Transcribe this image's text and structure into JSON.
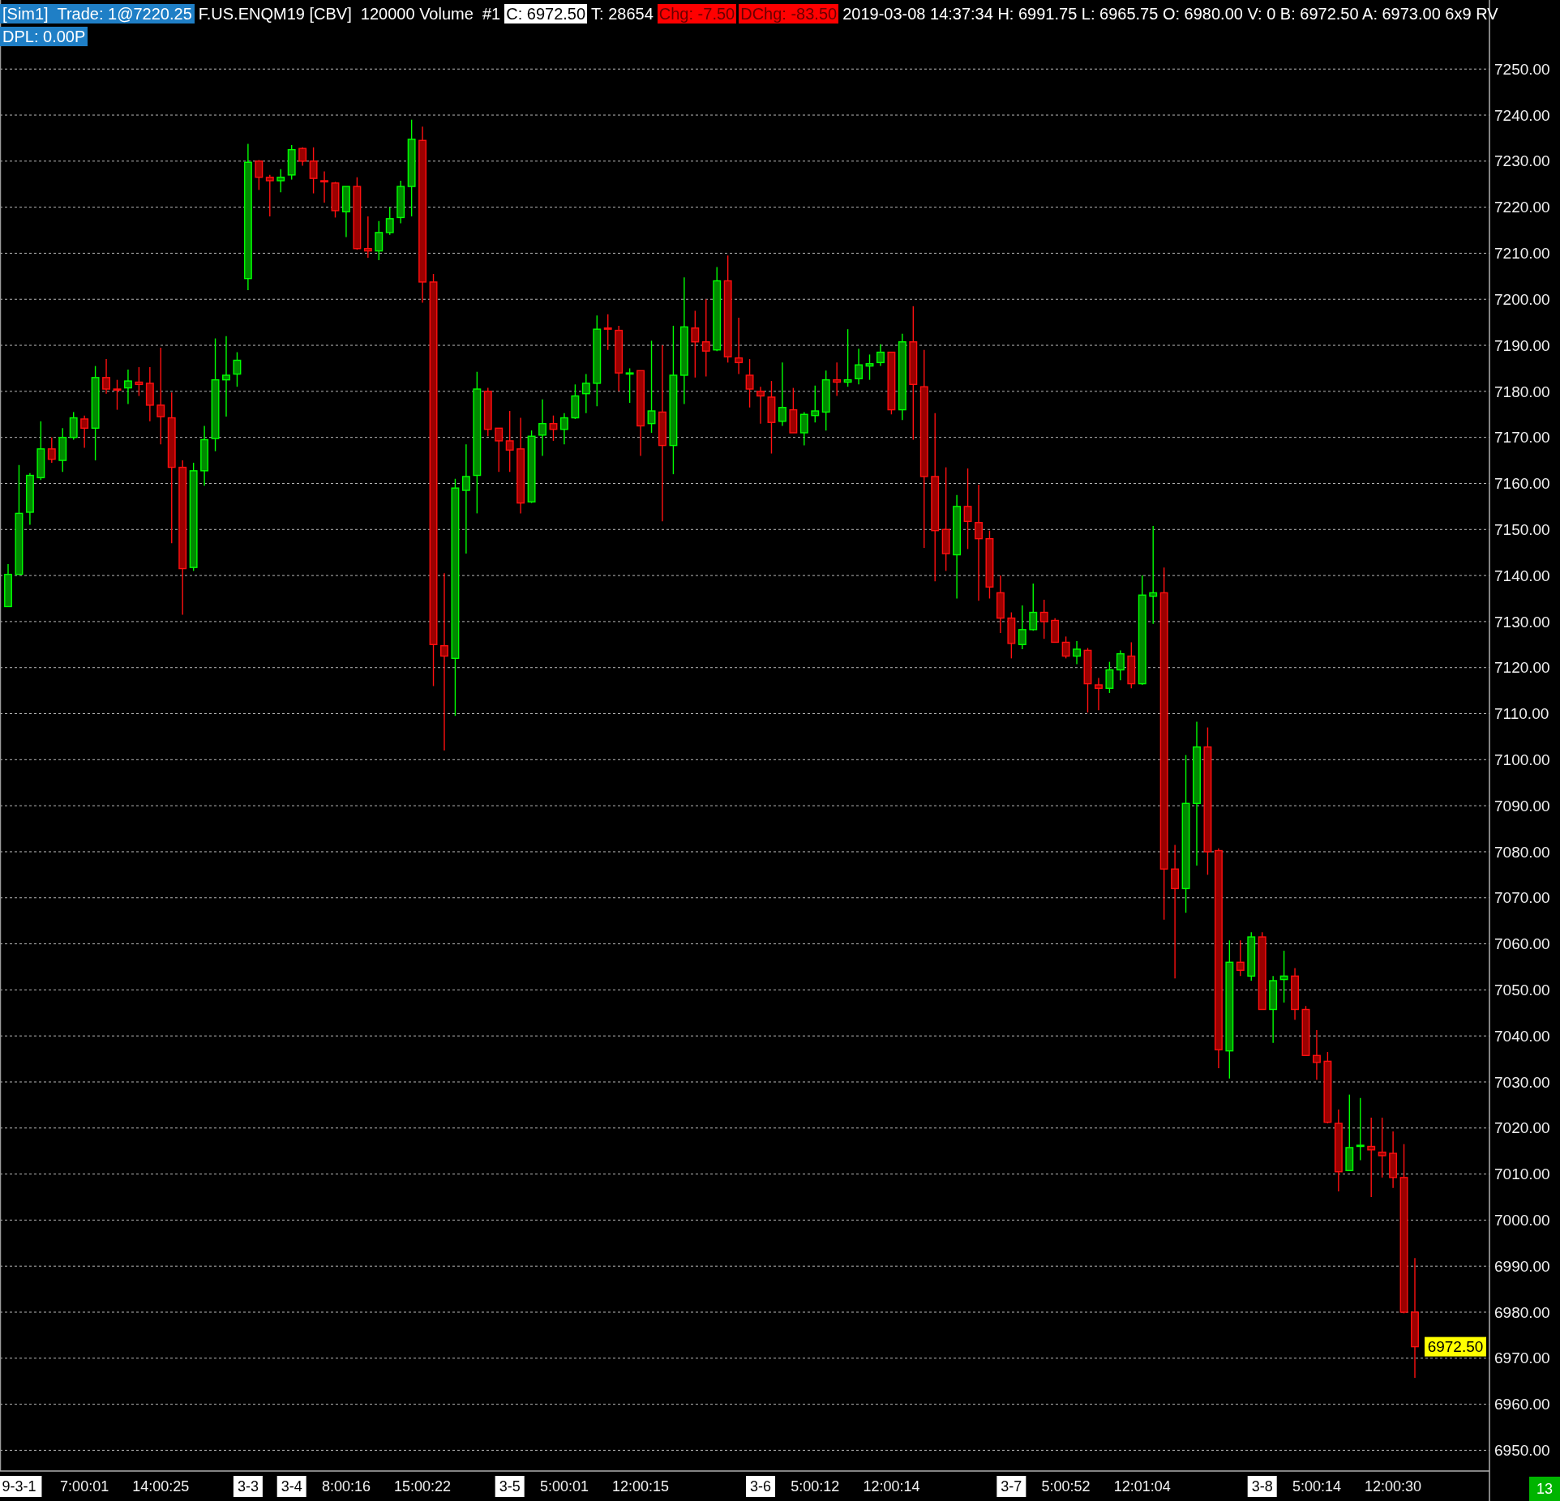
{
  "chart_data": {
    "type": "candlestick",
    "title": "[Sim1]  Trade: 1@7220.25",
    "subtitle": "DPL: 0.00P",
    "annotations": [
      "F.US.ENQM19 [CBV]  120000 Volume  #1",
      "C: 6972.50",
      "T: 28654",
      "Chg: -7.50",
      "DChg: -83.50",
      "2019-03-08 14:37:34 H: 6991.75 L: 6965.75 O: 6980.00 V: 0 B: 6972.50 A: 6973.00 6x9 RV",
      "13",
      "6972.50"
    ],
    "categories": [
      null,
      "9-3-1",
      null,
      null,
      null,
      null,
      null,
      "7:00:01",
      null,
      null,
      null,
      null,
      null,
      null,
      "14:00:25",
      null,
      null,
      null,
      null,
      null,
      null,
      null,
      "3-3",
      null,
      null,
      null,
      "3-4",
      null,
      null,
      null,
      null,
      "8:00:16",
      null,
      null,
      null,
      null,
      null,
      null,
      "15:00:22",
      null,
      null,
      null,
      null,
      null,
      null,
      null,
      "3-5",
      null,
      null,
      null,
      null,
      "5:00:01",
      null,
      null,
      null,
      null,
      null,
      null,
      "12:00:15",
      null,
      null,
      null,
      null,
      null,
      null,
      null,
      null,
      null,
      null,
      "3-6",
      null,
      null,
      null,
      null,
      "5:00:12",
      null,
      null,
      null,
      null,
      null,
      null,
      "12:00:14",
      null,
      null,
      null,
      null,
      null,
      null,
      null,
      null,
      null,
      null,
      "3-7",
      null,
      null,
      null,
      null,
      "5:00:52",
      null,
      null,
      null,
      null,
      null,
      null,
      "12:01:04",
      null,
      null,
      null,
      null,
      null,
      null,
      null,
      null,
      null,
      null,
      "3-8",
      null,
      null,
      null,
      null,
      "5:00:14",
      null,
      null,
      null,
      null,
      null,
      null,
      "12:00:30",
      null,
      null
    ],
    "ohlc": [
      [
        7133.25,
        7142.5,
        7133.25,
        7140.25
      ],
      [
        7140.25,
        7164,
        7140.25,
        7153.5
      ],
      [
        7153.75,
        7162.25,
        7151,
        7161.75
      ],
      [
        7161.25,
        7173.5,
        7160.75,
        7167.5
      ],
      [
        7167.5,
        7170,
        7164.5,
        7165.25
      ],
      [
        7165,
        7172,
        7162.5,
        7170
      ],
      [
        7170,
        7175.5,
        7169.5,
        7174.25
      ],
      [
        7174,
        7174.75,
        7167.75,
        7172
      ],
      [
        7172,
        7185.5,
        7165,
        7183
      ],
      [
        7183,
        7187,
        7179.5,
        7180.5
      ],
      [
        7180.5,
        7182.5,
        7176,
        7180.25
      ],
      [
        7180.75,
        7184.75,
        7177.25,
        7182.25
      ],
      [
        7182,
        7185.25,
        7179,
        7181.5
      ],
      [
        7181.75,
        7185.25,
        7173.5,
        7177
      ],
      [
        7177,
        7189.5,
        7168.5,
        7174.5
      ],
      [
        7174.25,
        7179.75,
        7147,
        7163.5
      ],
      [
        7163.5,
        7165,
        7131.5,
        7141.5
      ],
      [
        7141.75,
        7164.5,
        7141,
        7162.75
      ],
      [
        7162.75,
        7172.5,
        7159.5,
        7169.5
      ],
      [
        7169.75,
        7191.5,
        7167,
        7182.5
      ],
      [
        7182.5,
        7192,
        7174.5,
        7183.5
      ],
      [
        7183.75,
        7188.5,
        7181,
        7186.75
      ],
      [
        7204.5,
        7233.75,
        7202,
        7229.75
      ],
      [
        7230,
        7230.25,
        7223.75,
        7226.5
      ],
      [
        7226.5,
        7227,
        7218,
        7225.75
      ],
      [
        7225.75,
        7228.25,
        7223.25,
        7226.5
      ],
      [
        7227,
        7233.5,
        7226,
        7232.5
      ],
      [
        7232.75,
        7233,
        7229,
        7230
      ],
      [
        7230,
        7233,
        7223,
        7226.25
      ],
      [
        7225.75,
        7227.75,
        7221,
        7225.5
      ],
      [
        7225.25,
        7225.5,
        7217.75,
        7219.25
      ],
      [
        7219,
        7224.5,
        7213.5,
        7224.5
      ],
      [
        7224.5,
        7226.5,
        7210.75,
        7211
      ],
      [
        7211,
        7218,
        7209,
        7210.5
      ],
      [
        7210.5,
        7217,
        7208.5,
        7214.5
      ],
      [
        7214.5,
        7220,
        7214,
        7217.5
      ],
      [
        7217.75,
        7225.75,
        7216.5,
        7224.5
      ],
      [
        7224.5,
        7239,
        7218,
        7234.75
      ],
      [
        7234.5,
        7237.5,
        7199.25,
        7203.75
      ],
      [
        7203.75,
        7205.5,
        7116,
        7125
      ],
      [
        7124.75,
        7140.5,
        7102,
        7122.5
      ],
      [
        7122,
        7161,
        7109.5,
        7159
      ],
      [
        7158.5,
        7168.5,
        7144.75,
        7161.5
      ],
      [
        7161.75,
        7184.25,
        7153.5,
        7180.5
      ],
      [
        7180,
        7180.75,
        7170.25,
        7171.75
      ],
      [
        7172,
        7172,
        7162.5,
        7169.25
      ],
      [
        7169.25,
        7175.75,
        7162.5,
        7167.25
      ],
      [
        7167.5,
        7174.25,
        7153.5,
        7155.75
      ],
      [
        7156,
        7171.5,
        7155.75,
        7170.25
      ],
      [
        7170.5,
        7178.25,
        7166,
        7173
      ],
      [
        7173,
        7174.75,
        7169.25,
        7171.75
      ],
      [
        7171.75,
        7175.25,
        7168.5,
        7174.25
      ],
      [
        7174.25,
        7181.5,
        7174,
        7179
      ],
      [
        7179.5,
        7183.75,
        7175.25,
        7181.75
      ],
      [
        7181.75,
        7196.5,
        7176.75,
        7193.5
      ],
      [
        7193.75,
        7196.75,
        7189,
        7193.5
      ],
      [
        7193.25,
        7194.25,
        7180,
        7184
      ],
      [
        7183.75,
        7185,
        7177.5,
        7184
      ],
      [
        7184.5,
        7184.5,
        7166,
        7172.5
      ],
      [
        7173,
        7191,
        7171,
        7175.75
      ],
      [
        7175.5,
        7190,
        7151.75,
        7168.25
      ],
      [
        7168.25,
        7194.25,
        7162,
        7183.5
      ],
      [
        7183.5,
        7204.75,
        7177.25,
        7194
      ],
      [
        7193.75,
        7197.5,
        7183,
        7190.75
      ],
      [
        7190.75,
        7200,
        7183.25,
        7188.75
      ],
      [
        7189,
        7207,
        7188.75,
        7204
      ],
      [
        7204,
        7209.5,
        7186.25,
        7187.5
      ],
      [
        7187.25,
        7196,
        7183.75,
        7186.25
      ],
      [
        7183.5,
        7187,
        7176.5,
        7180.5
      ],
      [
        7180,
        7181,
        7173,
        7179
      ],
      [
        7178.75,
        7182.25,
        7166.5,
        7173.25
      ],
      [
        7173.5,
        7186.25,
        7172.5,
        7176.5
      ],
      [
        7176,
        7180.75,
        7171,
        7171
      ],
      [
        7171,
        7175.5,
        7168.25,
        7175
      ],
      [
        7174.75,
        7181.25,
        7173.25,
        7175.75
      ],
      [
        7175.5,
        7184.5,
        7171.5,
        7182.5
      ],
      [
        7182.5,
        7186.25,
        7179,
        7182
      ],
      [
        7182,
        7193.5,
        7181,
        7182.5
      ],
      [
        7182.75,
        7189.25,
        7181.5,
        7185.75
      ],
      [
        7185.5,
        7188,
        7182.5,
        7186
      ],
      [
        7186.25,
        7190.25,
        7185.5,
        7188.5
      ],
      [
        7188.5,
        7188.5,
        7175,
        7176
      ],
      [
        7176,
        7192.5,
        7173.75,
        7190.75
      ],
      [
        7190.75,
        7198.5,
        7169.5,
        7181.5
      ],
      [
        7181,
        7189,
        7146,
        7161.5
      ],
      [
        7161.5,
        7175.25,
        7138.75,
        7149.75
      ],
      [
        7150,
        7163.5,
        7141,
        7144.75
      ],
      [
        7144.5,
        7157.5,
        7135,
        7155
      ],
      [
        7155,
        7163.25,
        7145.75,
        7151.75
      ],
      [
        7151.5,
        7159.75,
        7134.5,
        7148
      ],
      [
        7148,
        7149.75,
        7135,
        7137.5
      ],
      [
        7136.25,
        7140,
        7127.5,
        7130.75
      ],
      [
        7130.75,
        7132,
        7122,
        7125.25
      ],
      [
        7125,
        7133.5,
        7124,
        7128.25
      ],
      [
        7128.25,
        7138.25,
        7128,
        7132
      ],
      [
        7132,
        7134.75,
        7126.25,
        7130
      ],
      [
        7130.25,
        7130.75,
        7125.5,
        7125.5
      ],
      [
        7125.5,
        7126.75,
        7122,
        7122.5
      ],
      [
        7122.5,
        7125.75,
        7120.75,
        7124
      ],
      [
        7123.75,
        7124.25,
        7110.25,
        7116.5
      ],
      [
        7116.25,
        7117.75,
        7110.75,
        7115.5
      ],
      [
        7115.5,
        7121.25,
        7114.5,
        7119.5
      ],
      [
        7119.5,
        7123.75,
        7117.25,
        7123
      ],
      [
        7122.5,
        7125.5,
        7115.5,
        7116.5
      ],
      [
        7116.5,
        7140,
        7116.25,
        7135.75
      ],
      [
        7135.5,
        7150.75,
        7129.5,
        7136.25
      ],
      [
        7136.25,
        7141.75,
        7065.25,
        7076.25
      ],
      [
        7076.25,
        7081.5,
        7052.5,
        7072
      ],
      [
        7072,
        7101,
        7066.75,
        7090.5
      ],
      [
        7090.5,
        7108.25,
        7077,
        7102.75
      ],
      [
        7102.75,
        7107,
        7075,
        7080
      ],
      [
        7080.25,
        7080.75,
        7033,
        7037
      ],
      [
        7036.75,
        7060.75,
        7030.75,
        7056
      ],
      [
        7056,
        7060.75,
        7053,
        7054.25
      ],
      [
        7053,
        7062.5,
        7052,
        7061.5
      ],
      [
        7061.5,
        7062.5,
        7045.75,
        7045.75
      ],
      [
        7045.75,
        7053,
        7038.5,
        7052
      ],
      [
        7052.25,
        7058.5,
        7047.25,
        7053
      ],
      [
        7053,
        7054.75,
        7043.5,
        7045.75
      ],
      [
        7045.75,
        7046.5,
        7035.75,
        7035.75
      ],
      [
        7035.75,
        7041.25,
        7030.5,
        7034.25
      ],
      [
        7034.5,
        7036.5,
        7021,
        7021.25
      ],
      [
        7021,
        7024,
        7006.25,
        7010.5
      ],
      [
        7010.75,
        7027.25,
        7010.75,
        7015.75
      ],
      [
        7016,
        7026.5,
        7013,
        7016.25
      ],
      [
        7016,
        7022.25,
        7005,
        7015.25
      ],
      [
        7014.75,
        7022.25,
        7009.25,
        7014
      ],
      [
        7014.5,
        7019.25,
        7007,
        7009.25
      ],
      [
        7009.25,
        7016.5,
        6979.75,
        6980
      ],
      [
        6980,
        6991.75,
        6965.75,
        6972.5
      ]
    ],
    "ylim": [
      6945.5,
      7265
    ],
    "yticks": [
      {
        "value": 6950,
        "label": "6950.00"
      },
      {
        "value": 6960,
        "label": "6960.00"
      },
      {
        "value": 6970,
        "label": "6970.00"
      },
      {
        "value": 6980,
        "label": "6980.00"
      },
      {
        "value": 6990,
        "label": "6990.00"
      },
      {
        "value": 7000,
        "label": "7000.00"
      },
      {
        "value": 7010,
        "label": "7010.00"
      },
      {
        "value": 7020,
        "label": "7020.00"
      },
      {
        "value": 7030,
        "label": "7030.00"
      },
      {
        "value": 7040,
        "label": "7040.00"
      },
      {
        "value": 7050,
        "label": "7050.00"
      },
      {
        "value": 7060,
        "label": "7060.00"
      },
      {
        "value": 7070,
        "label": "7070.00"
      },
      {
        "value": 7080,
        "label": "7080.00"
      },
      {
        "value": 7090,
        "label": "7090.00"
      },
      {
        "value": 7100,
        "label": "7100.00"
      },
      {
        "value": 7110,
        "label": "7110.00"
      },
      {
        "value": 7120,
        "label": "7120.00"
      },
      {
        "value": 7130,
        "label": "7130.00"
      },
      {
        "value": 7140,
        "label": "7140.00"
      },
      {
        "value": 7150,
        "label": "7150.00"
      },
      {
        "value": 7160,
        "label": "7160.00"
      },
      {
        "value": 7170,
        "label": "7170.00"
      },
      {
        "value": 7180,
        "label": "7180.00"
      },
      {
        "value": 7190,
        "label": "7190.00"
      },
      {
        "value": 7200,
        "label": "7200.00"
      },
      {
        "value": 7210,
        "label": "7210.00"
      },
      {
        "value": 7220,
        "label": "7220.00"
      },
      {
        "value": 7230,
        "label": "7230.00"
      },
      {
        "value": 7240,
        "label": "7240.00"
      },
      {
        "value": 7250,
        "label": "7250.00"
      }
    ],
    "grid": "y"
  }
}
